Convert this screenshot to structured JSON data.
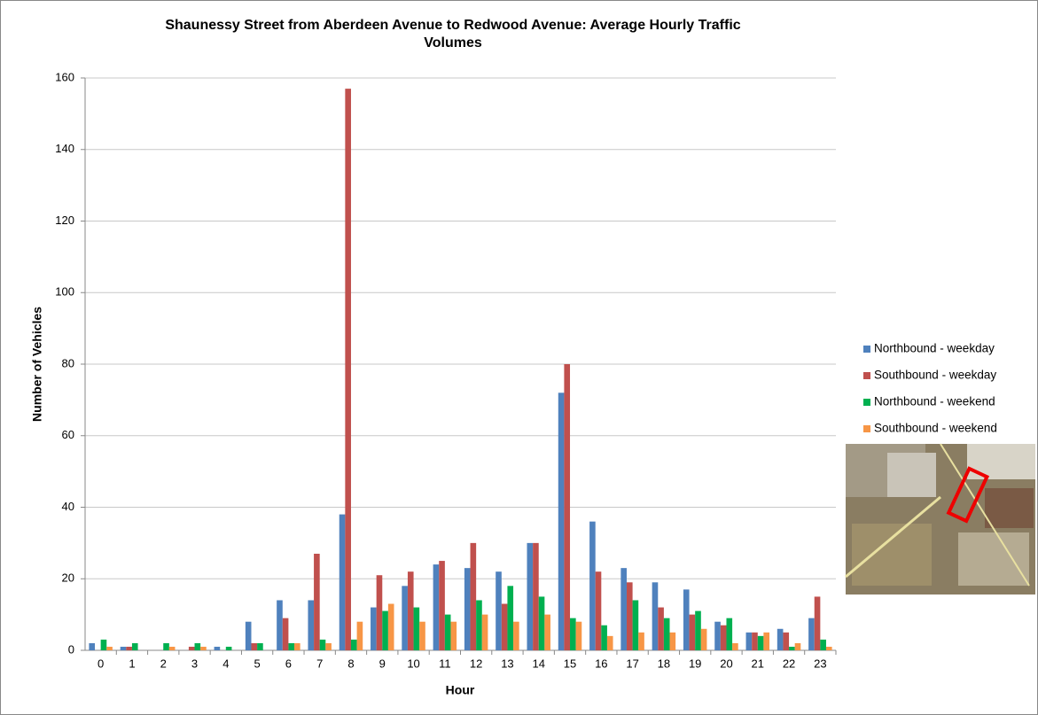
{
  "chart_data": {
    "type": "bar",
    "title": "Shaunessy Street from Aberdeen Avenue to Redwood Avenue: Average Hourly Traffic Volumes",
    "x_label": "Hour",
    "y_label": "Number of Vehicles",
    "categories": [
      "0",
      "1",
      "2",
      "3",
      "4",
      "5",
      "6",
      "7",
      "8",
      "9",
      "10",
      "11",
      "12",
      "13",
      "14",
      "15",
      "16",
      "17",
      "18",
      "19",
      "20",
      "21",
      "22",
      "23"
    ],
    "series": [
      {
        "name": "Northbound - weekday",
        "color": "#4f81bd",
        "values": [
          2,
          1,
          0,
          0,
          1,
          8,
          14,
          14,
          38,
          12,
          18,
          24,
          23,
          22,
          30,
          72,
          36,
          23,
          19,
          17,
          8,
          5,
          6,
          9
        ]
      },
      {
        "name": "Southbound - weekday",
        "color": "#c0504d",
        "values": [
          0,
          1,
          0,
          1,
          0,
          2,
          9,
          27,
          157,
          21,
          22,
          25,
          30,
          13,
          30,
          80,
          22,
          19,
          12,
          10,
          7,
          5,
          5,
          15
        ]
      },
      {
        "name": "Northbound - weekend",
        "color": "#00b050",
        "values": [
          3,
          2,
          2,
          2,
          1,
          2,
          2,
          3,
          3,
          11,
          12,
          10,
          14,
          18,
          15,
          9,
          7,
          14,
          9,
          11,
          9,
          4,
          1,
          3
        ]
      },
      {
        "name": "Southbound - weekend",
        "color": "#f79646",
        "values": [
          1,
          0,
          1,
          1,
          0,
          0,
          2,
          2,
          8,
          13,
          8,
          8,
          10,
          8,
          10,
          8,
          4,
          5,
          5,
          6,
          2,
          5,
          2,
          1
        ]
      }
    ],
    "ylim": [
      0,
      160
    ],
    "yticks": [
      0,
      20,
      40,
      60,
      80,
      100,
      120,
      140,
      160
    ],
    "grid": true,
    "legend": "right"
  }
}
